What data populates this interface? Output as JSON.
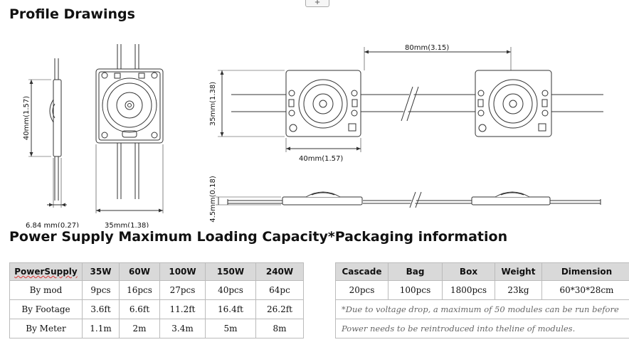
{
  "headings": {
    "profile": "Profile Drawings",
    "power": "Power Supply Maximum Loading Capacity*Packaging information"
  },
  "toolbar": {
    "expand_glyph": "+"
  },
  "drawing": {
    "side_height": "40mm(1.57)",
    "side_thickness": "6.84 mm(0.27)",
    "front_width": "35mm(1.38)",
    "spacing": "80mm(3.15)",
    "module_height": "35mm(1.38)",
    "module_width": "40mm(1.57)",
    "profile_height": "4.5mm(0.18)"
  },
  "power_table": {
    "corner": "PowerSupply",
    "watts": [
      "35W",
      "60W",
      "100W",
      "150W",
      "240W"
    ],
    "rows": [
      {
        "label": "By mod",
        "values": [
          "9pcs",
          "16pcs",
          "27pcs",
          "40pcs",
          "64pc"
        ]
      },
      {
        "label": "By Footage",
        "values": [
          "3.6ft",
          "6.6ft",
          "11.2ft",
          "16.4ft",
          "26.2ft"
        ]
      },
      {
        "label": "By Meter",
        "values": [
          "1.1m",
          "2m",
          "3.4m",
          "5m",
          "8m"
        ]
      }
    ]
  },
  "packaging_table": {
    "headers": [
      "Cascade",
      "Bag",
      "Box",
      "Weight",
      "Dimension"
    ],
    "values": [
      "20pcs",
      "100pcs",
      "1800pcs",
      "23kg",
      "60*30*28cm"
    ],
    "note1": "*Due to voltage drop, a maximum of 50 modules can be run before",
    "note2": "Power needs to be reintroduced into theline of modules."
  }
}
